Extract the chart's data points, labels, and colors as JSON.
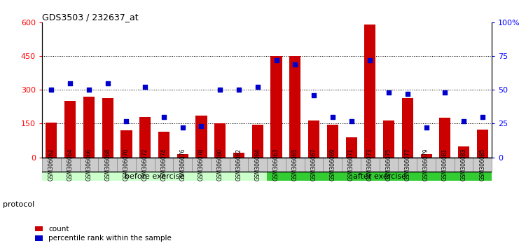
{
  "title": "GDS3503 / 232637_at",
  "samples": [
    "GSM306062",
    "GSM306064",
    "GSM306066",
    "GSM306068",
    "GSM306070",
    "GSM306072",
    "GSM306074",
    "GSM306076",
    "GSM306078",
    "GSM306080",
    "GSM306082",
    "GSM306084",
    "GSM306063",
    "GSM306065",
    "GSM306067",
    "GSM306069",
    "GSM306071",
    "GSM306073",
    "GSM306075",
    "GSM306077",
    "GSM306079",
    "GSM306081",
    "GSM306083",
    "GSM306085"
  ],
  "counts": [
    155,
    250,
    270,
    265,
    120,
    180,
    115,
    15,
    185,
    150,
    20,
    145,
    450,
    450,
    165,
    145,
    90,
    590,
    165,
    265,
    15,
    175,
    50,
    125
  ],
  "percentiles": [
    50,
    55,
    50,
    55,
    27,
    52,
    30,
    22,
    23,
    50,
    50,
    52,
    72,
    69,
    46,
    30,
    27,
    72,
    48,
    47,
    22,
    48,
    27,
    30
  ],
  "before_exercise_count": 12,
  "bar_color": "#cc0000",
  "dot_color": "#0000cc",
  "before_bg": "#ccffcc",
  "after_bg": "#33cc33",
  "xtick_bg": "#cccccc",
  "ylim_left": [
    0,
    600
  ],
  "ylim_right": [
    0,
    100
  ],
  "yticks_left": [
    0,
    150,
    300,
    450,
    600
  ],
  "yticks_right": [
    0,
    25,
    50,
    75,
    100
  ],
  "grid_vals": [
    150,
    300,
    450
  ],
  "legend_count_label": "count",
  "legend_pct_label": "percentile rank within the sample",
  "protocol_label": "protocol",
  "before_label": "before exercise",
  "after_label": "after exercise"
}
